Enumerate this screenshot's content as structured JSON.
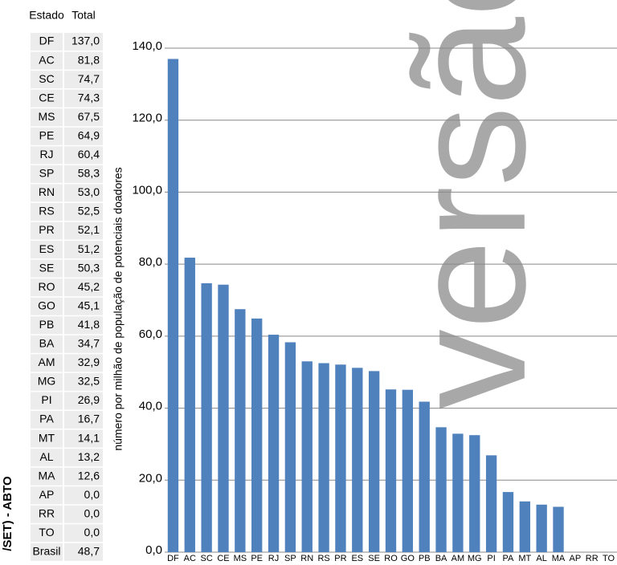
{
  "table": {
    "header": [
      "Estado",
      "Total"
    ],
    "rows": [
      [
        "DF",
        "137,0"
      ],
      [
        "AC",
        "81,8"
      ],
      [
        "SC",
        "74,7"
      ],
      [
        "CE",
        "74,3"
      ],
      [
        "MS",
        "67,5"
      ],
      [
        "PE",
        "64,9"
      ],
      [
        "RJ",
        "60,4"
      ],
      [
        "SP",
        "58,3"
      ],
      [
        "RN",
        "53,0"
      ],
      [
        "RS",
        "52,5"
      ],
      [
        "PR",
        "52,1"
      ],
      [
        "ES",
        "51,2"
      ],
      [
        "SE",
        "50,3"
      ],
      [
        "RO",
        "45,2"
      ],
      [
        "GO",
        "45,1"
      ],
      [
        "PB",
        "41,8"
      ],
      [
        "BA",
        "34,7"
      ],
      [
        "AM",
        "32,9"
      ],
      [
        "MG",
        "32,5"
      ],
      [
        "PI",
        "26,9"
      ],
      [
        "PA",
        "16,7"
      ],
      [
        "MT",
        "14,1"
      ],
      [
        "AL",
        "13,2"
      ],
      [
        "MA",
        "12,6"
      ],
      [
        "AP",
        "0,0"
      ],
      [
        "RR",
        "0,0"
      ],
      [
        "TO",
        "0,0"
      ],
      [
        "Brasil",
        "48,7"
      ]
    ]
  },
  "side_text": "/SET) - ABTO",
  "watermark": "versão",
  "chart_data": {
    "type": "bar",
    "y_label": "número por milhão de população de potenciais doadores",
    "categories": [
      "DF",
      "AC",
      "SC",
      "CE",
      "MS",
      "PE",
      "RJ",
      "SP",
      "RN",
      "RS",
      "PR",
      "ES",
      "SE",
      "RO",
      "GO",
      "PB",
      "BA",
      "AM",
      "MG",
      "PI",
      "PA",
      "MT",
      "AL",
      "MA",
      "AP",
      "RR",
      "TO"
    ],
    "values": [
      137.0,
      81.8,
      74.7,
      74.3,
      67.5,
      64.9,
      60.4,
      58.3,
      53.0,
      52.5,
      52.1,
      51.2,
      50.3,
      45.2,
      45.1,
      41.8,
      34.7,
      32.9,
      32.5,
      26.9,
      16.7,
      14.1,
      13.2,
      12.6,
      0,
      0,
      0
    ],
    "color": "#4f81bd",
    "ylim": [
      0,
      140
    ],
    "yticks": [
      {
        "value": 0,
        "label": "0,0"
      },
      {
        "value": 20,
        "label": "20,0"
      },
      {
        "value": 40,
        "label": "40,0"
      },
      {
        "value": 60,
        "label": "60,0"
      },
      {
        "value": 80,
        "label": "80,0"
      },
      {
        "value": 100,
        "label": "100,0"
      },
      {
        "value": 120,
        "label": "120,0"
      },
      {
        "value": 140,
        "label": "140,0"
      }
    ],
    "grid": true
  }
}
